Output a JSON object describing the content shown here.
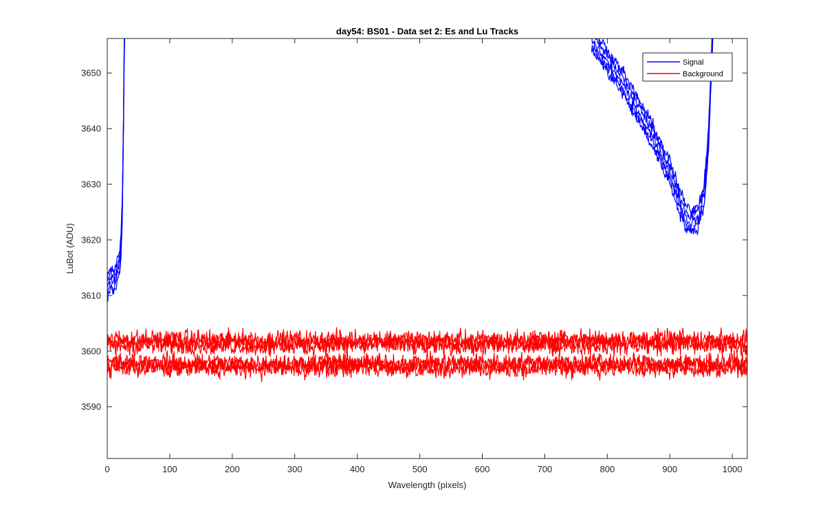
{
  "chart_data": {
    "type": "line",
    "title": "day54: BS01 - Data set 2: Es and Lu Tracks",
    "xlabel": "Wavelength (pixels)",
    "ylabel": "LuBot (ADU)",
    "xlim": [
      0,
      1024
    ],
    "ylim": [
      3580.7,
      3656.2
    ],
    "xticks": [
      0,
      100,
      200,
      300,
      400,
      500,
      600,
      700,
      800,
      900,
      1000
    ],
    "yticks": [
      3590,
      3600,
      3610,
      3620,
      3630,
      3640,
      3650
    ],
    "grid": false,
    "legend_position": "top-right",
    "series": [
      {
        "name": "Signal",
        "color": "#0000ff",
        "x": [
          0,
          5,
          10,
          15,
          20,
          22,
          24,
          26,
          27,
          28,
          775,
          800,
          825,
          850,
          875,
          900,
          915,
          925,
          935,
          945,
          955,
          962,
          966,
          968,
          970
        ],
        "y": [
          3611,
          3613,
          3612,
          3614,
          3616,
          3619,
          3625,
          3640,
          3652,
          3660,
          3656,
          3652,
          3648,
          3643,
          3638,
          3632,
          3627,
          3624,
          3623,
          3624,
          3628,
          3638,
          3650,
          3656,
          3662
        ]
      },
      {
        "name": "Background",
        "color": "#ff0000",
        "x": [
          0,
          100,
          200,
          300,
          400,
          500,
          600,
          700,
          800,
          900,
          1000,
          1024
        ],
        "y": [
          3601.5,
          3601.6,
          3601.5,
          3601.4,
          3601.6,
          3601.5,
          3601.4,
          3601.6,
          3601.5,
          3601.5,
          3601.6,
          3601.5
        ]
      },
      {
        "name": "",
        "color": "#ff0000",
        "x": [
          0,
          100,
          200,
          300,
          400,
          500,
          600,
          700,
          800,
          900,
          1000,
          1024
        ],
        "y": [
          3597.5,
          3597.6,
          3597.4,
          3597.5,
          3597.6,
          3597.4,
          3597.5,
          3597.6,
          3597.5,
          3597.4,
          3597.5,
          3597.5
        ]
      }
    ]
  }
}
